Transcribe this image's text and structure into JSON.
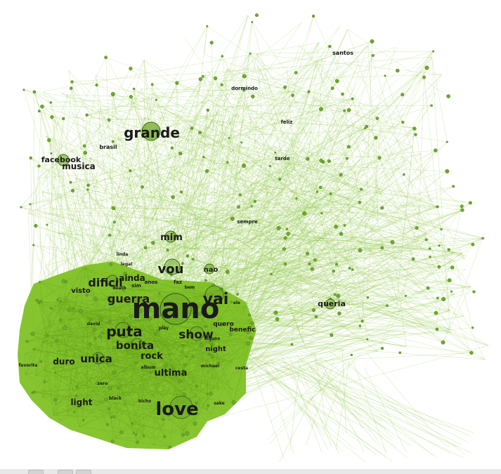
{
  "colors": {
    "background": "#ffffff",
    "edge": "#8cc63f",
    "dense_cluster": "#7cbf1e",
    "node_fill": "#6fa82a",
    "node_stroke": "#3d6b12",
    "label": "#1a1a1a"
  },
  "labels": [
    {
      "id": "mano",
      "text": "mano"
    },
    {
      "id": "love",
      "text": "love"
    },
    {
      "id": "grande",
      "text": "grande"
    },
    {
      "id": "vai",
      "text": "vai"
    },
    {
      "id": "puta",
      "text": "puta"
    },
    {
      "id": "vou",
      "text": "vou"
    },
    {
      "id": "show",
      "text": "show"
    },
    {
      "id": "guerra",
      "text": "guerra"
    },
    {
      "id": "dificil",
      "text": "dificil"
    },
    {
      "id": "bonita",
      "text": "bonita"
    },
    {
      "id": "unica",
      "text": "unica"
    },
    {
      "id": "mim",
      "text": "mim"
    },
    {
      "id": "ultima",
      "text": "ultima"
    },
    {
      "id": "rock",
      "text": "rock"
    },
    {
      "id": "light",
      "text": "light"
    },
    {
      "id": "duro",
      "text": "duro"
    },
    {
      "id": "facebook",
      "text": "facebook"
    },
    {
      "id": "musica",
      "text": "musica"
    },
    {
      "id": "brasil",
      "text": "brasil"
    },
    {
      "id": "queria",
      "text": "queria"
    },
    {
      "id": "nao",
      "text": "nao"
    },
    {
      "id": "ainda",
      "text": "ainda"
    },
    {
      "id": "night",
      "text": "night"
    },
    {
      "id": "quero",
      "text": "quero"
    },
    {
      "id": "beneficio",
      "text": "benefic"
    },
    {
      "id": "visto",
      "text": "visto"
    },
    {
      "id": "santos",
      "text": "santos"
    },
    {
      "id": "dormindo",
      "text": "dormindo"
    },
    {
      "id": "feliz",
      "text": "feliz"
    },
    {
      "id": "sempre",
      "text": "sempre"
    },
    {
      "id": "tarde",
      "text": "tarde"
    },
    {
      "id": "anos",
      "text": "anos"
    },
    {
      "id": "faz",
      "text": "faz"
    },
    {
      "id": "sim",
      "text": "sim"
    },
    {
      "id": "bem",
      "text": "bem"
    },
    {
      "id": "death",
      "text": "death"
    },
    {
      "id": "david",
      "text": "david"
    },
    {
      "id": "play",
      "text": "play"
    },
    {
      "id": "michael",
      "text": "michael"
    },
    {
      "id": "album",
      "text": "album"
    },
    {
      "id": "bicho",
      "text": "bicho"
    },
    {
      "id": "black",
      "text": "black"
    },
    {
      "id": "zero",
      "text": "zero"
    },
    {
      "id": "sake",
      "text": "sake"
    },
    {
      "id": "favorita",
      "text": "favorita"
    },
    {
      "id": "ele",
      "text": "ele"
    },
    {
      "id": "alguns",
      "text": "alguns"
    },
    {
      "id": "cesta",
      "text": "cesta"
    },
    {
      "id": "legal",
      "text": "legal"
    },
    {
      "id": "linda",
      "text": "linda"
    }
  ]
}
